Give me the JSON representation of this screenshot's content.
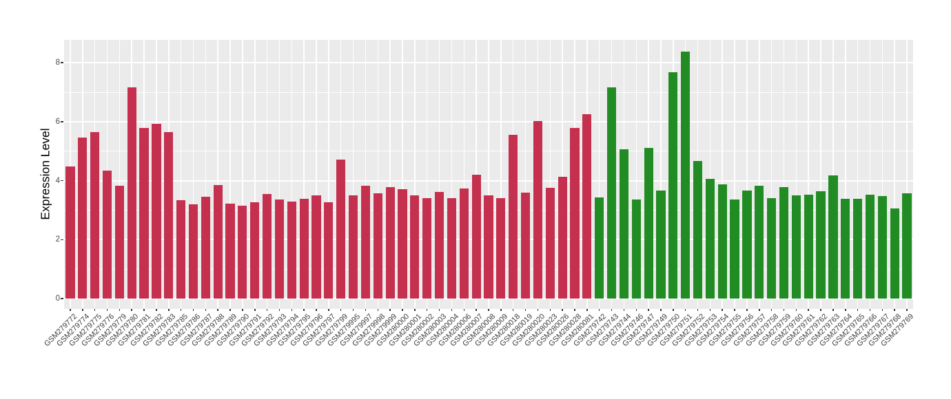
{
  "chart_data": {
    "type": "bar",
    "title": "",
    "xlabel": "",
    "ylabel": "Expression Level",
    "ylim": [
      -0.35,
      8.77
    ],
    "yticks": [
      0,
      2,
      4,
      6,
      8
    ],
    "yticks_minor": [
      1,
      3,
      5,
      7
    ],
    "grid": "on",
    "legend": "none",
    "panel_bg": "#EBEBEB",
    "grid_color": "#FFFFFF",
    "tick_color": "#333333",
    "tick_label_color": "#4D4D4D",
    "groups": [
      {
        "name": "group-1-red",
        "color": "#C4304E",
        "start": 0,
        "end": 42
      },
      {
        "name": "group-2-green",
        "color": "#218C24",
        "start": 43,
        "end": 68
      }
    ],
    "categories": [
      "GSM279772",
      "GSM279774",
      "GSM279775",
      "GSM279776",
      "GSM279779",
      "GSM279780",
      "GSM279781",
      "GSM279782",
      "GSM279783",
      "GSM279785",
      "GSM279786",
      "GSM279787",
      "GSM279788",
      "GSM279789",
      "GSM279790",
      "GSM279791",
      "GSM279792",
      "GSM279793",
      "GSM279794",
      "GSM279795",
      "GSM279796",
      "GSM279797",
      "GSM279799",
      "GSM279995",
      "GSM279997",
      "GSM279998",
      "GSM279999",
      "GSM280000",
      "GSM280001",
      "GSM280002",
      "GSM280003",
      "GSM280004",
      "GSM280006",
      "GSM280007",
      "GSM280008",
      "GSM280009",
      "GSM280018",
      "GSM280019",
      "GSM280020",
      "GSM280023",
      "GSM280026",
      "GSM280028",
      "GSM280081",
      "GSM279742",
      "GSM279743",
      "GSM279744",
      "GSM279746",
      "GSM279747",
      "GSM279749",
      "GSM279750",
      "GSM279751",
      "GSM279752",
      "GSM279753",
      "GSM279754",
      "GSM279755",
      "GSM279756",
      "GSM279757",
      "GSM279758",
      "GSM279759",
      "GSM279760",
      "GSM279761",
      "GSM279762",
      "GSM279763",
      "GSM279764",
      "GSM279765",
      "GSM279766",
      "GSM279767",
      "GSM279768",
      "GSM279769"
    ],
    "values": [
      4.49,
      5.46,
      5.65,
      4.33,
      3.83,
      7.17,
      5.79,
      5.93,
      5.65,
      3.33,
      3.2,
      3.45,
      3.84,
      3.22,
      3.14,
      3.27,
      3.55,
      3.35,
      3.28,
      3.39,
      3.5,
      3.27,
      4.72,
      3.5,
      3.83,
      3.58,
      3.77,
      3.71,
      3.49,
      3.4,
      3.61,
      3.41,
      3.74,
      4.19,
      3.49,
      3.4,
      5.55,
      3.6,
      6.03,
      3.76,
      4.14,
      5.78,
      6.26,
      3.44,
      7.16,
      5.06,
      3.36,
      5.12,
      3.67,
      7.67,
      8.38,
      4.67,
      4.05,
      3.87,
      3.37,
      3.66,
      3.83,
      3.41,
      3.78,
      3.49,
      3.52,
      3.63,
      4.18,
      3.39,
      3.39,
      3.53,
      3.48,
      3.05,
      3.58
    ]
  }
}
